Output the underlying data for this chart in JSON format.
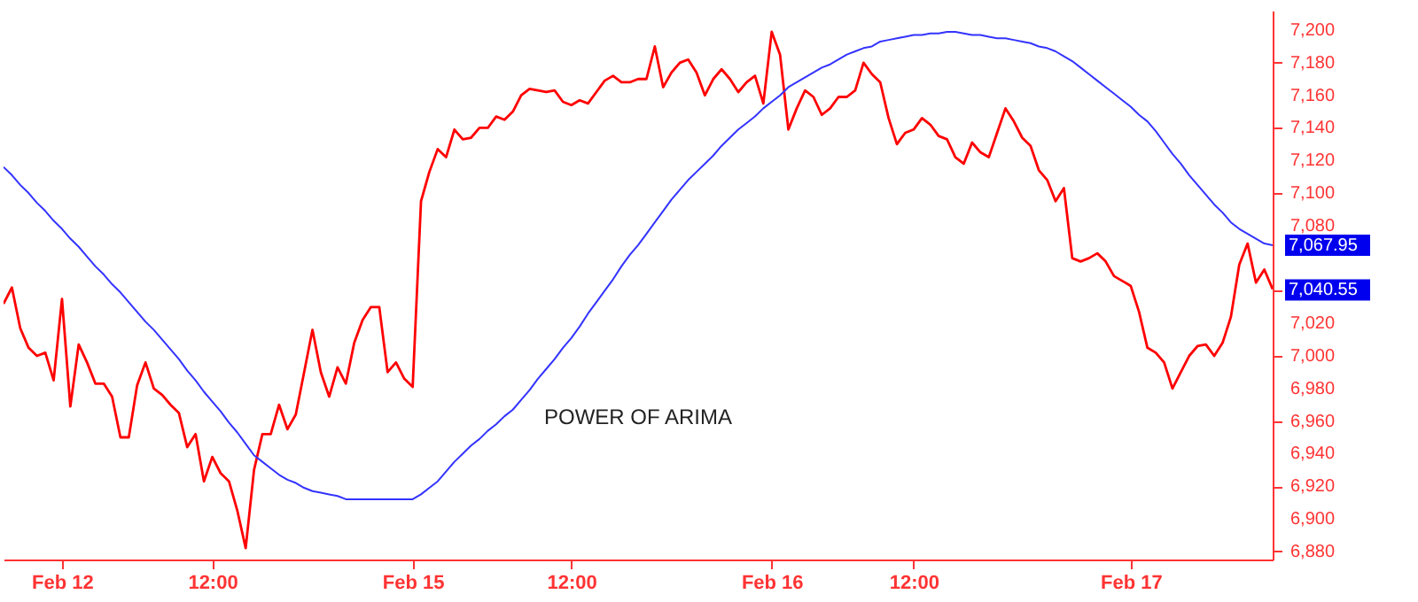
{
  "chart_data": {
    "type": "line",
    "annotations": [
      "POWER OF ARIMA",
      "7,067.95",
      "7,040.55"
    ],
    "categories": [
      null,
      null,
      null,
      null,
      null,
      null,
      null,
      "Feb 12",
      null,
      null,
      null,
      null,
      null,
      null,
      null,
      null,
      null,
      null,
      null,
      null,
      null,
      null,
      null,
      null,
      null,
      "12:00",
      null,
      null,
      null,
      null,
      null,
      null,
      null,
      null,
      null,
      null,
      null,
      null,
      null,
      null,
      null,
      null,
      null,
      null,
      null,
      null,
      null,
      null,
      null,
      "Feb 15",
      null,
      null,
      null,
      null,
      null,
      null,
      null,
      null,
      null,
      null,
      null,
      null,
      null,
      null,
      null,
      null,
      null,
      null,
      "12:00",
      null,
      null,
      null,
      null,
      null,
      null,
      null,
      null,
      null,
      null,
      null,
      null,
      null,
      null,
      null,
      null,
      null,
      null,
      null,
      null,
      null,
      null,
      null,
      "Feb 16",
      null,
      null,
      null,
      null,
      null,
      null,
      null,
      null,
      null,
      null,
      null,
      null,
      null,
      null,
      null,
      null,
      "12:00",
      null,
      null,
      null,
      null,
      null,
      null,
      null,
      null,
      null,
      null,
      null,
      null,
      null,
      null,
      null,
      null,
      null,
      null,
      null,
      null,
      null,
      null,
      null,
      null,
      null,
      "Feb 17",
      null,
      null,
      null,
      null,
      null,
      null,
      null,
      null,
      null,
      null,
      null,
      null,
      null,
      null,
      null,
      null,
      null
    ],
    "ylim": [
      6875,
      7212
    ],
    "yticks": [
      {
        "value": 6880,
        "label": "6,880"
      },
      {
        "value": 6900,
        "label": "6,900"
      },
      {
        "value": 6920,
        "label": "6,920"
      },
      {
        "value": 6940,
        "label": "6,940"
      },
      {
        "value": 6960,
        "label": "6,960"
      },
      {
        "value": 6980,
        "label": "6,980"
      },
      {
        "value": 7000,
        "label": "7,000"
      },
      {
        "value": 7020,
        "label": "7,020"
      },
      {
        "value": 7040,
        "label": null
      },
      {
        "value": 7080,
        "label": "7,080"
      },
      {
        "value": 7100,
        "label": "7,100"
      },
      {
        "value": 7120,
        "label": "7,120"
      },
      {
        "value": 7140,
        "label": "7,140"
      },
      {
        "value": 7160,
        "label": "7,160"
      },
      {
        "value": 7180,
        "label": "7,180"
      },
      {
        "value": 7200,
        "label": "7,200"
      }
    ],
    "grid": false,
    "marker": "none",
    "line_style": "solid",
    "series": [
      {
        "color": "#ff0000",
        "values": [
          7032,
          7042,
          7017,
          7005,
          7000,
          7002,
          6985,
          7035,
          6969,
          7007,
          6996,
          6983,
          6983,
          6975,
          6950,
          6950,
          6982,
          6996,
          6980,
          6976,
          6970,
          6965,
          6944,
          6952,
          6923,
          6938,
          6928,
          6923,
          6905,
          6882,
          6930,
          6952,
          6952,
          6970,
          6955,
          6964,
          6990,
          7016,
          6990,
          6975,
          6993,
          6983,
          7008,
          7022,
          7030,
          7030,
          6990,
          6996,
          6986,
          6981,
          7095,
          7113,
          7127,
          7122,
          7139,
          7133,
          7134,
          7140,
          7140,
          7147,
          7145,
          7150,
          7160,
          7164,
          7163,
          7162,
          7163,
          7156,
          7154,
          7157,
          7155,
          7162,
          7169,
          7172,
          7168,
          7168,
          7170,
          7170,
          7190,
          7165,
          7174,
          7180,
          7182,
          7174,
          7160,
          7170,
          7176,
          7170,
          7162,
          7168,
          7172,
          7155,
          7199,
          7185,
          7139,
          7152,
          7163,
          7159,
          7148,
          7152,
          7159,
          7159,
          7163,
          7180,
          7173,
          7168,
          7146,
          7130,
          7137,
          7139,
          7146,
          7142,
          7135,
          7133,
          7122,
          7118,
          7131,
          7125,
          7122,
          7137,
          7152,
          7144,
          7134,
          7129,
          7114,
          7108,
          7095,
          7103,
          7060,
          7058,
          7060,
          7063,
          7058,
          7049,
          7046,
          7043,
          7027,
          7005,
          7002,
          6996,
          6980,
          6990,
          7000,
          7006,
          7007,
          7000,
          7008,
          7024,
          7056,
          7069,
          7045,
          7053,
          7041
        ]
      },
      {
        "color": "#3333ff",
        "values": [
          7116,
          7111,
          7105,
          7100,
          7094,
          7089,
          7083,
          7078,
          7072,
          7067,
          7061,
          7055,
          7050,
          7044,
          7039,
          7033,
          7027,
          7021,
          7016,
          7010,
          7004,
          6998,
          6991,
          6985,
          6978,
          6972,
          6966,
          6959,
          6953,
          6946,
          6939,
          6935,
          6931,
          6927,
          6924,
          6922,
          6919,
          6917,
          6916,
          6915,
          6914,
          6912,
          6912,
          6912,
          6912,
          6912,
          6912,
          6912,
          6912,
          6912,
          6915,
          6919,
          6923,
          6929,
          6935,
          6940,
          6945,
          6949,
          6954,
          6958,
          6963,
          6967,
          6973,
          6979,
          6986,
          6992,
          6998,
          7005,
          7011,
          7018,
          7026,
          7033,
          7040,
          7047,
          7055,
          7062,
          7068,
          7075,
          7082,
          7089,
          7096,
          7102,
          7108,
          7113,
          7118,
          7123,
          7129,
          7134,
          7139,
          7143,
          7147,
          7152,
          7156,
          7160,
          7165,
          7168,
          7171,
          7174,
          7177,
          7179,
          7182,
          7185,
          7187,
          7189,
          7190,
          7193,
          7194,
          7195,
          7196,
          7197,
          7197,
          7198,
          7198,
          7199,
          7199,
          7198,
          7197,
          7197,
          7196,
          7195,
          7195,
          7194,
          7193,
          7192,
          7190,
          7189,
          7187,
          7184,
          7181,
          7177,
          7173,
          7169,
          7165,
          7161,
          7157,
          7153,
          7148,
          7144,
          7138,
          7131,
          7124,
          7118,
          7111,
          7105,
          7099,
          7093,
          7088,
          7082,
          7078,
          7075,
          7072,
          7069,
          7068
        ]
      }
    ]
  }
}
